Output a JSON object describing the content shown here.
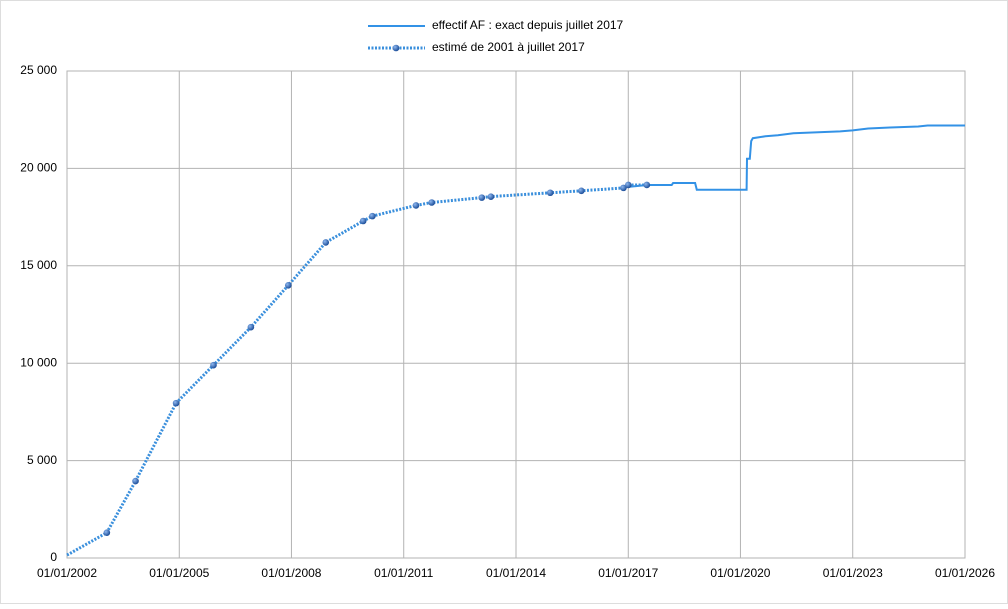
{
  "chart_data": {
    "type": "line",
    "xlim": [
      "2002-01-01",
      "2026-01-01"
    ],
    "xticks": [
      {
        "value": "2002-01-01",
        "label": "01/01/2002"
      },
      {
        "value": "2005-01-01",
        "label": "01/01/2005"
      },
      {
        "value": "2008-01-01",
        "label": "01/01/2008"
      },
      {
        "value": "2011-01-01",
        "label": "01/01/2011"
      },
      {
        "value": "2014-01-01",
        "label": "01/01/2014"
      },
      {
        "value": "2017-01-01",
        "label": "01/01/2017"
      },
      {
        "value": "2020-01-01",
        "label": "01/01/2020"
      },
      {
        "value": "2023-01-01",
        "label": "01/01/2023"
      },
      {
        "value": "2026-01-01",
        "label": "01/01/2026"
      }
    ],
    "ylim": [
      0,
      25000
    ],
    "yticks": [
      0,
      {
        "value": 5000,
        "label": "5 000"
      },
      {
        "value": 10000,
        "label": "10 000"
      },
      {
        "value": 15000,
        "label": "15 000"
      },
      {
        "value": 20000,
        "label": "20 000"
      },
      {
        "value": 25000,
        "label": "25 000"
      }
    ],
    "grid": true,
    "legend": "top",
    "series": [
      {
        "name": "effectif AF : exact depuis juillet 2017",
        "color": "#3392e6",
        "style": "solid",
        "markers": false,
        "x": [
          "2017-01-01",
          "2017-07-01",
          "2018-03-01",
          "2018-03-15",
          "2018-10-15",
          "2018-11-01",
          "2020-03-01",
          "2020-03-05",
          "2020-04-01",
          "2020-04-15",
          "2020-05-01",
          "2020-09-01",
          "2021-01-01",
          "2021-06-01",
          "2022-01-01",
          "2022-09-01",
          "2023-01-01",
          "2023-06-01",
          "2024-01-01",
          "2024-10-01",
          "2025-01-01",
          "2026-01-01"
        ],
        "values": [
          19050,
          19150,
          19150,
          19250,
          19250,
          18900,
          18900,
          20500,
          20500,
          21400,
          21550,
          21650,
          21700,
          21800,
          21850,
          21900,
          21950,
          22050,
          22100,
          22150,
          22200,
          22200
        ]
      },
      {
        "name": "estimé de 2001 à juillet 2017",
        "color": "#3a8fdc",
        "style": "dotted",
        "markers": true,
        "marker_color": "#1d4f9a",
        "x": [
          "2002-01-01",
          "2003-01-25",
          "2003-11-01",
          "2004-12-01",
          "2005-12-01",
          "2006-12-01",
          "2007-12-01",
          "2008-12-01",
          "2009-12-01",
          "2010-03-01",
          "2011-05-01",
          "2011-10-01",
          "2013-02-01",
          "2013-05-01",
          "2014-12-01",
          "2015-10-01",
          "2016-11-15",
          "2017-01-01",
          "2017-07-01"
        ],
        "values": [
          150,
          1300,
          3950,
          7950,
          9900,
          11850,
          14000,
          16200,
          17300,
          17550,
          18100,
          18250,
          18500,
          18550,
          18750,
          18850,
          19000,
          19150,
          19150
        ]
      }
    ]
  }
}
